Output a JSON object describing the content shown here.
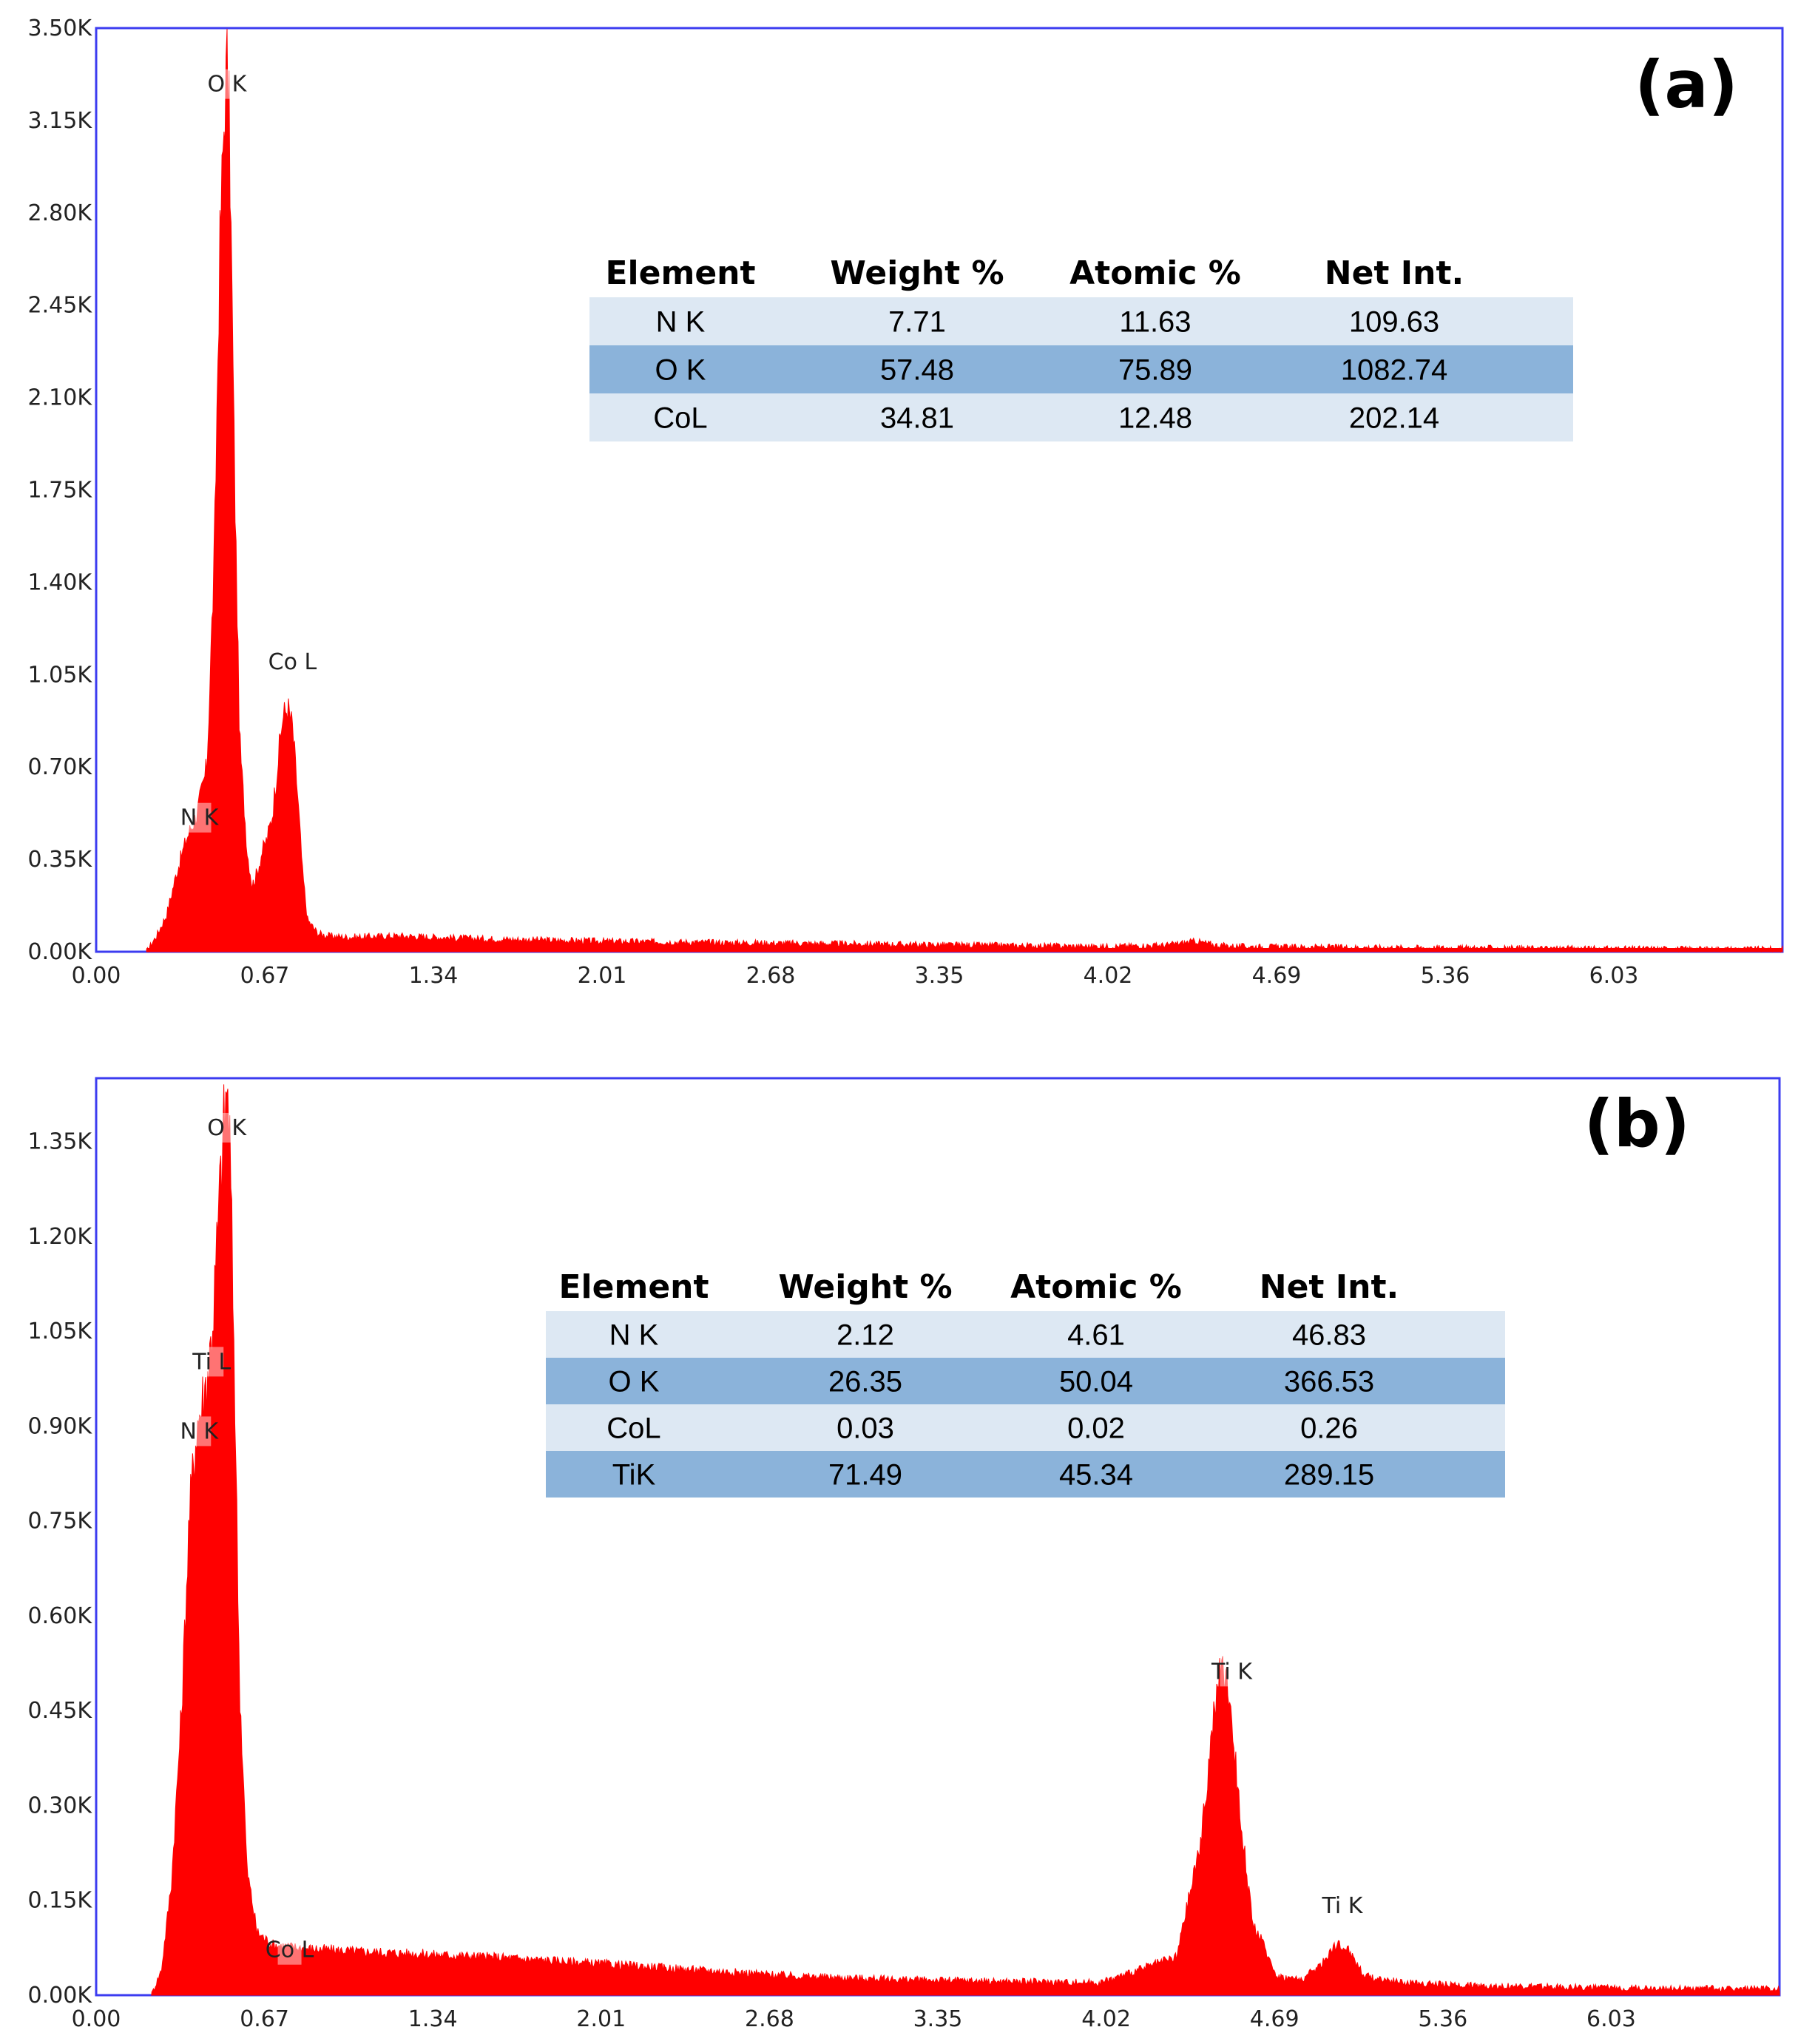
{
  "chart_data": [
    {
      "type": "area",
      "panel_label": "(a)",
      "title": "",
      "xlabel": "",
      "ylabel": "",
      "xlim": [
        0,
        6.7
      ],
      "ylim": [
        0,
        3500
      ],
      "x_ticks": [
        "0.00",
        "0.67",
        "1.34",
        "2.01",
        "2.68",
        "3.35",
        "4.02",
        "4.69",
        "5.36",
        "6.03"
      ],
      "y_ticks": [
        "0.00K",
        "0.35K",
        "0.70K",
        "1.05K",
        "1.40K",
        "1.75K",
        "2.10K",
        "2.45K",
        "2.80K",
        "3.15K",
        "3.50K"
      ],
      "color": "#ff0000",
      "series": [
        {
          "x": [
            0.2,
            0.24,
            0.28,
            0.32,
            0.36,
            0.4,
            0.44,
            0.47,
            0.49,
            0.51,
            0.52,
            0.53,
            0.55,
            0.57,
            0.6,
            0.62,
            0.64,
            0.66,
            0.68,
            0.7,
            0.72,
            0.74,
            0.76,
            0.78,
            0.8,
            0.82,
            0.84,
            0.88,
            0.92,
            1.0,
            1.2,
            1.5,
            2.0,
            2.5,
            3.0,
            3.5,
            4.0,
            4.25,
            4.37,
            4.45,
            4.55,
            4.8,
            5.3,
            6.0,
            6.7
          ],
          "y": [
            0,
            60,
            140,
            300,
            430,
            520,
            700,
            1500,
            2600,
            3200,
            3350,
            3100,
            1800,
            800,
            380,
            250,
            300,
            380,
            430,
            520,
            700,
            880,
            930,
            850,
            600,
            300,
            120,
            70,
            60,
            55,
            60,
            50,
            40,
            35,
            30,
            25,
            20,
            25,
            40,
            25,
            20,
            18,
            15,
            12,
            10
          ]
        }
      ],
      "peak_labels": [
        {
          "text": "O  K",
          "x": 0.52,
          "y": 3260
        },
        {
          "text": "Co L",
          "x": 0.78,
          "y": 1070
        },
        {
          "text": "N  K",
          "x": 0.41,
          "y": 480
        }
      ],
      "table": {
        "headers": [
          "Element",
          "Weight %",
          "Atomic %",
          "Net Int."
        ],
        "rows": [
          [
            "N K",
            "7.71",
            "11.63",
            "109.63"
          ],
          [
            "O K",
            "57.48",
            "75.89",
            "1082.74"
          ],
          [
            "CoL",
            "34.81",
            "12.48",
            "202.14"
          ]
        ]
      },
      "grid": false
    },
    {
      "type": "area",
      "panel_label": "(b)",
      "title": "",
      "xlabel": "",
      "ylabel": "",
      "xlim": [
        0,
        6.7
      ],
      "ylim": [
        0,
        1450
      ],
      "x_ticks": [
        "0.00",
        "0.67",
        "1.34",
        "2.01",
        "2.68",
        "3.35",
        "4.02",
        "4.69",
        "5.36",
        "6.03"
      ],
      "y_ticks": [
        "0.00K",
        "0.15K",
        "0.30K",
        "0.45K",
        "0.60K",
        "0.75K",
        "0.90K",
        "1.05K",
        "1.20K",
        "1.35K"
      ],
      "color": "#ff0000",
      "series": [
        {
          "x": [
            0.22,
            0.26,
            0.3,
            0.34,
            0.37,
            0.4,
            0.43,
            0.45,
            0.47,
            0.49,
            0.51,
            0.52,
            0.53,
            0.55,
            0.57,
            0.6,
            0.64,
            0.7,
            0.8,
            1.0,
            1.3,
            1.6,
            2.0,
            2.4,
            2.8,
            3.2,
            3.6,
            4.0,
            4.3,
            4.4,
            4.45,
            4.48,
            4.51,
            4.55,
            4.6,
            4.7,
            4.8,
            4.88,
            4.93,
            4.98,
            5.05,
            5.2,
            5.5,
            6.0,
            6.7
          ],
          "y": [
            0,
            40,
            180,
            450,
            750,
            900,
            950,
            1000,
            1100,
            1250,
            1380,
            1430,
            1380,
            1000,
            500,
            200,
            100,
            80,
            75,
            70,
            65,
            60,
            50,
            40,
            30,
            25,
            22,
            20,
            60,
            250,
            450,
            520,
            480,
            300,
            120,
            30,
            25,
            50,
            80,
            75,
            30,
            20,
            15,
            12,
            10
          ]
        }
      ],
      "peak_labels": [
        {
          "text": "O  K",
          "x": 0.52,
          "y": 1360
        },
        {
          "text": "Ti L",
          "x": 0.46,
          "y": 990
        },
        {
          "text": "N  K",
          "x": 0.41,
          "y": 880
        },
        {
          "text": "Co L",
          "x": 0.77,
          "y": 60
        },
        {
          "text": "Ti K",
          "x": 4.52,
          "y": 500
        },
        {
          "text": "Ti K",
          "x": 4.96,
          "y": 130
        }
      ],
      "table": {
        "headers": [
          "Element",
          "Weight %",
          "Atomic %",
          "Net Int."
        ],
        "rows": [
          [
            "N K",
            "2.12",
            "4.61",
            "46.83"
          ],
          [
            "O K",
            "26.35",
            "50.04",
            "366.53"
          ],
          [
            "CoL",
            "0.03",
            "0.02",
            "0.26"
          ],
          [
            "TiK",
            "71.49",
            "45.34",
            "289.15"
          ]
        ]
      },
      "grid": false
    }
  ]
}
